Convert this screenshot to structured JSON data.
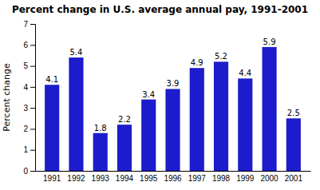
{
  "chart_data": {
    "type": "bar",
    "title": "Percent change in U.S. average annual pay, 1991-2001",
    "ylabel": "Percent change",
    "categories": [
      "1991",
      "1992",
      "1993",
      "1994",
      "1995",
      "1996",
      "1997",
      "1998",
      "1999",
      "2000",
      "2001"
    ],
    "values": [
      4.1,
      5.4,
      1.8,
      2.2,
      3.4,
      3.9,
      4.9,
      5.2,
      4.4,
      5.9,
      2.5
    ],
    "color": "#1c1ccc",
    "ylim": [
      0,
      7
    ],
    "yticks": [
      0,
      1,
      2,
      3,
      4,
      5,
      6,
      7
    ],
    "grid": false,
    "data_labels": true
  }
}
